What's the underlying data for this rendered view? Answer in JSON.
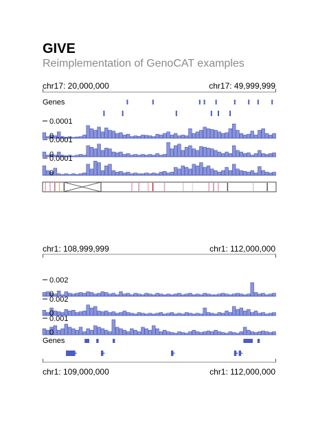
{
  "app": {
    "title": "GIVE",
    "subtitle": "Reimplementation of GenoCAT examples"
  },
  "panel1": {
    "coord_left": "chr17: 20,000,000",
    "coord_right": "chr17: 49,999,999",
    "genes_label": "Genes",
    "genes_row1_ticks": [
      0.36,
      0.47,
      0.67,
      0.69,
      0.74,
      0.82,
      0.88,
      0.92,
      0.98
    ],
    "genes_row2_ticks": [
      0.26,
      0.34,
      0.57,
      0.72,
      0.75,
      0.8
    ],
    "tracks": [
      {
        "max_label": "0.0001",
        "zero_label": "0",
        "values": [
          0.35,
          0.1,
          0.2,
          0.15,
          0.4,
          0.1,
          0.05,
          0.1,
          0.05,
          0.08,
          0.1,
          0.2,
          0.8,
          0.6,
          0.5,
          0.7,
          0.4,
          0.65,
          0.5,
          0.45,
          0.3,
          0.35,
          0.2,
          0.25,
          0.1,
          0.15,
          0.12,
          0.2,
          0.18,
          0.15,
          0.1,
          0.25,
          0.2,
          0.3,
          0.4,
          0.2,
          0.3,
          0.15,
          0.2,
          0.15,
          0.6,
          0.3,
          0.4,
          0.5,
          0.7,
          0.6,
          0.55,
          0.5,
          0.4,
          0.3,
          0.35,
          0.6,
          0.9,
          0.5,
          0.3,
          0.2,
          0.25,
          0.45,
          0.2,
          0.5,
          0.6,
          0.3,
          0.2,
          0.3
        ]
      },
      {
        "max_label": "0.0001",
        "zero_label": "0",
        "values": [
          0.3,
          0.1,
          0.15,
          0.1,
          0.3,
          0.1,
          0.05,
          0.1,
          0.05,
          0.1,
          0.15,
          0.1,
          0.7,
          0.6,
          0.5,
          0.8,
          0.4,
          0.55,
          0.5,
          0.3,
          0.25,
          0.3,
          0.15,
          0.2,
          0.1,
          0.15,
          0.1,
          0.15,
          0.1,
          0.15,
          0.1,
          0.2,
          0.1,
          0.15,
          0.9,
          0.5,
          0.7,
          0.8,
          0.4,
          0.6,
          0.7,
          0.5,
          0.4,
          0.65,
          0.6,
          0.55,
          0.5,
          0.4,
          0.3,
          0.2,
          0.3,
          0.2,
          0.7,
          0.4,
          0.3,
          0.2,
          0.25,
          0.1,
          0.2,
          0.4,
          0.2,
          0.15,
          0.2,
          0.25
        ]
      },
      {
        "max_label": "0.0001",
        "zero_label": "0",
        "values": [
          0.6,
          0.3,
          0.2,
          0.45,
          0.1,
          0.05,
          0.1,
          0.05,
          0.1,
          0.05,
          0.1,
          0.15,
          0.7,
          0.4,
          0.9,
          0.8,
          0.3,
          0.6,
          0.7,
          0.3,
          0.2,
          0.25,
          0.15,
          0.2,
          0.1,
          0.15,
          0.1,
          0.1,
          0.15,
          0.1,
          0.15,
          0.1,
          0.2,
          0.25,
          0.15,
          0.2,
          0.5,
          0.4,
          0.6,
          0.5,
          0.4,
          0.7,
          0.6,
          0.8,
          0.5,
          0.6,
          0.4,
          0.3,
          0.2,
          0.3,
          0.5,
          0.3,
          0.7,
          0.4,
          0.3,
          0.25,
          0.2,
          0.3,
          0.15,
          0.55,
          0.3,
          0.2,
          0.15,
          0.2
        ]
      }
    ],
    "accent_color": "#4b5cc4",
    "bar_color": "#8c95d8"
  },
  "panel2": {
    "coord_top_left": "chr1: 108,999,999",
    "coord_top_right": "chr1: 112,000,000",
    "coord_bottom_left": "chr1: 109,000,000",
    "coord_bottom_right": "chr1: 112,000,000",
    "genes_label": "Genes",
    "tracks": [
      {
        "max_label": "0.002",
        "zero_label": "0",
        "values": [
          0.25,
          0.3,
          0.2,
          0.15,
          0.35,
          0.1,
          0.3,
          0.2,
          0.15,
          0.2,
          0.25,
          0.2,
          0.3,
          0.25,
          0.15,
          0.2,
          0.3,
          0.25,
          0.15,
          0.2,
          0.1,
          0.3,
          0.15,
          0.2,
          0.1,
          0.2,
          0.15,
          0.1,
          0.2,
          0.15,
          0.1,
          0.2,
          0.15,
          0.1,
          0.15,
          0.1,
          0.15,
          0.2,
          0.1,
          0.15,
          0.2,
          0.1,
          0.15,
          0.1,
          0.2,
          0.15,
          0.1,
          0.1,
          0.15,
          0.2,
          0.15,
          0.1,
          0.15,
          0.2,
          0.15,
          0.1,
          0.15,
          0.9,
          0.25,
          0.15,
          0.2,
          0.1,
          0.15,
          0.2
        ]
      },
      {
        "max_label": "0.002",
        "zero_label": "0",
        "values": [
          0.35,
          0.2,
          0.5,
          0.3,
          0.25,
          0.2,
          0.4,
          0.3,
          0.35,
          0.2,
          0.25,
          0.3,
          0.7,
          0.5,
          0.6,
          0.3,
          0.25,
          0.3,
          0.2,
          0.25,
          0.15,
          0.2,
          0.3,
          0.2,
          0.15,
          0.1,
          0.2,
          0.15,
          0.1,
          0.15,
          0.1,
          0.15,
          0.2,
          0.1,
          0.15,
          0.2,
          0.1,
          0.15,
          0.1,
          0.2,
          0.15,
          0.1,
          0.15,
          0.1,
          0.5,
          0.2,
          0.15,
          0.1,
          0.2,
          0.15,
          0.3,
          0.2,
          0.6,
          0.4,
          0.5,
          0.3,
          0.4,
          0.2,
          0.3,
          0.15,
          0.2,
          0.1,
          0.15,
          0.2
        ]
      },
      {
        "max_label": "0.001",
        "zero_label": "0",
        "values": [
          0.4,
          0.3,
          0.5,
          0.6,
          0.3,
          0.4,
          0.7,
          0.5,
          0.4,
          0.3,
          0.5,
          0.2,
          0.4,
          0.3,
          0.6,
          0.5,
          0.4,
          0.3,
          0.2,
          1.0,
          0.5,
          0.4,
          0.3,
          0.2,
          0.4,
          0.3,
          0.2,
          0.5,
          0.4,
          0.3,
          0.6,
          0.4,
          0.2,
          0.3,
          0.2,
          0.15,
          0.1,
          0.2,
          0.15,
          0.1,
          0.2,
          0.3,
          0.2,
          0.15,
          0.2,
          0.25,
          0.2,
          0.3,
          0.2,
          0.15,
          0.1,
          0.2,
          0.15,
          0.1,
          0.2,
          0.5,
          0.3,
          0.2,
          0.15,
          0.2,
          0.25,
          0.2,
          0.15,
          0.2
        ]
      }
    ]
  }
}
